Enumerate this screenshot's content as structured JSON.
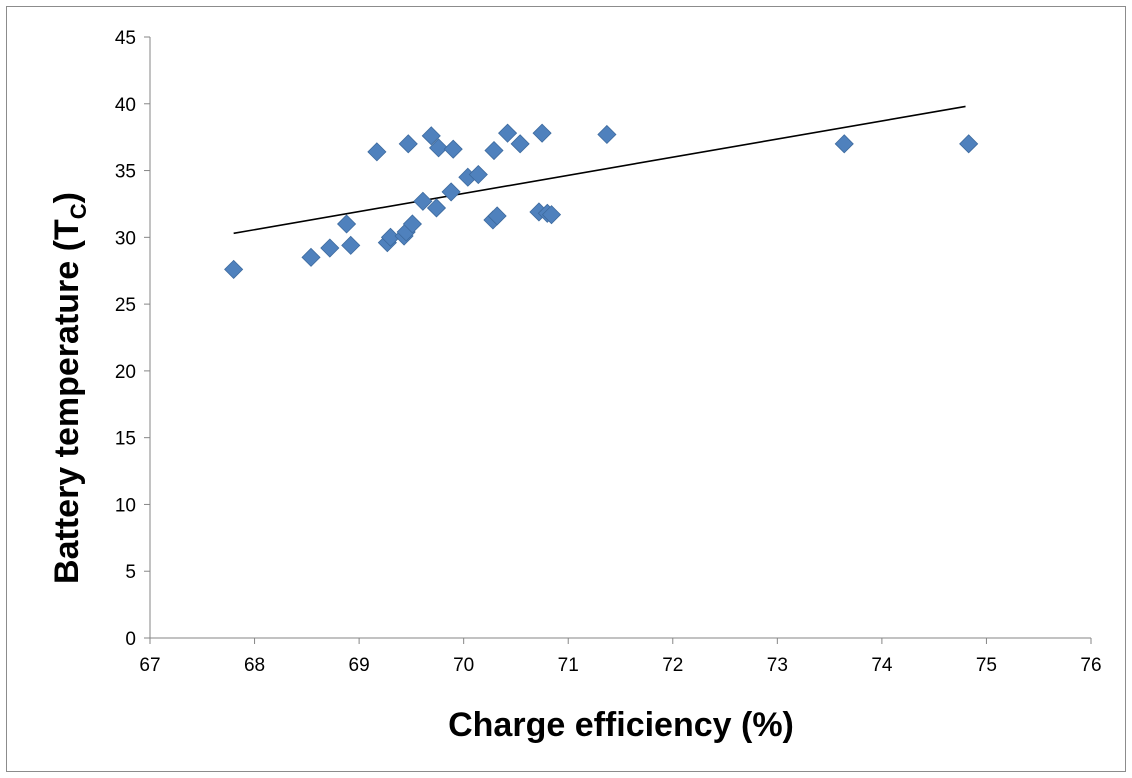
{
  "chart_data": {
    "type": "scatter",
    "title": "",
    "xlabel": "Charge efficiency (%)",
    "ylabel_main": "Battery temperature (T",
    "ylabel_sub": "C",
    "ylabel_close": ")",
    "xlim": [
      67,
      76
    ],
    "ylim": [
      0,
      45
    ],
    "xticks": [
      67,
      68,
      69,
      70,
      71,
      72,
      73,
      74,
      75,
      76
    ],
    "yticks": [
      0,
      5,
      10,
      15,
      20,
      25,
      30,
      35,
      40,
      45
    ],
    "grid": false,
    "legend": "none",
    "marker": "diamond",
    "marker_color": "#4f81bd",
    "trendline_color": "#000000",
    "points": [
      {
        "x": 67.8,
        "y": 27.6
      },
      {
        "x": 68.54,
        "y": 28.5
      },
      {
        "x": 68.72,
        "y": 29.2
      },
      {
        "x": 68.88,
        "y": 31.0
      },
      {
        "x": 68.92,
        "y": 29.4
      },
      {
        "x": 69.17,
        "y": 36.4
      },
      {
        "x": 69.27,
        "y": 29.6
      },
      {
        "x": 69.3,
        "y": 30.0
      },
      {
        "x": 69.43,
        "y": 30.1
      },
      {
        "x": 69.45,
        "y": 30.4
      },
      {
        "x": 69.47,
        "y": 37.0
      },
      {
        "x": 69.51,
        "y": 31.0
      },
      {
        "x": 69.61,
        "y": 32.7
      },
      {
        "x": 69.69,
        "y": 37.6
      },
      {
        "x": 69.74,
        "y": 32.2
      },
      {
        "x": 69.76,
        "y": 36.7
      },
      {
        "x": 69.88,
        "y": 33.4
      },
      {
        "x": 69.9,
        "y": 36.6
      },
      {
        "x": 70.04,
        "y": 34.5
      },
      {
        "x": 70.14,
        "y": 34.7
      },
      {
        "x": 70.28,
        "y": 31.3
      },
      {
        "x": 70.29,
        "y": 36.5
      },
      {
        "x": 70.32,
        "y": 31.6
      },
      {
        "x": 70.42,
        "y": 37.8
      },
      {
        "x": 70.54,
        "y": 37.0
      },
      {
        "x": 70.72,
        "y": 31.9
      },
      {
        "x": 70.75,
        "y": 37.8
      },
      {
        "x": 70.8,
        "y": 31.8
      },
      {
        "x": 70.84,
        "y": 31.7
      },
      {
        "x": 71.37,
        "y": 37.7
      },
      {
        "x": 73.64,
        "y": 37.0
      },
      {
        "x": 74.83,
        "y": 37.0
      }
    ],
    "trendline": {
      "x": [
        67.8,
        74.8
      ],
      "y": [
        30.3,
        39.8
      ]
    }
  }
}
